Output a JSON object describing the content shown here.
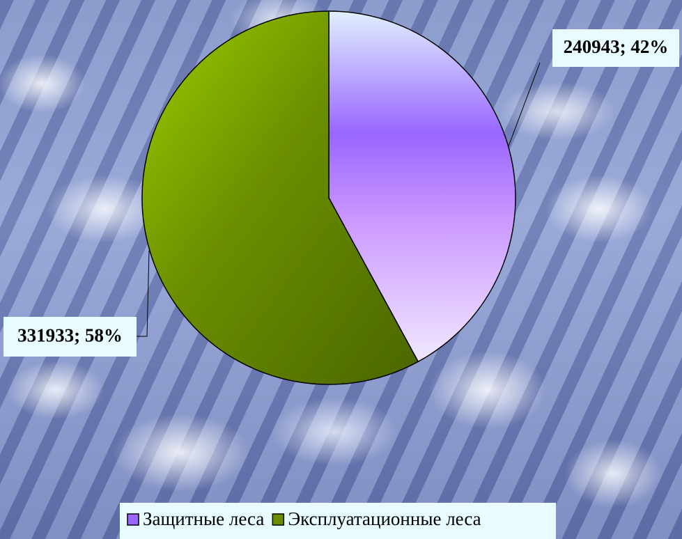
{
  "chart_data": {
    "type": "pie",
    "categories": [
      "Защитные леса",
      "Эксплуатационные леса"
    ],
    "values": [
      240943,
      331933
    ],
    "value_labels": [
      "240943; 42%",
      "331933; 58%"
    ],
    "colors": [
      "#9966ff",
      "#6b8e00"
    ],
    "legend": "bottom"
  }
}
